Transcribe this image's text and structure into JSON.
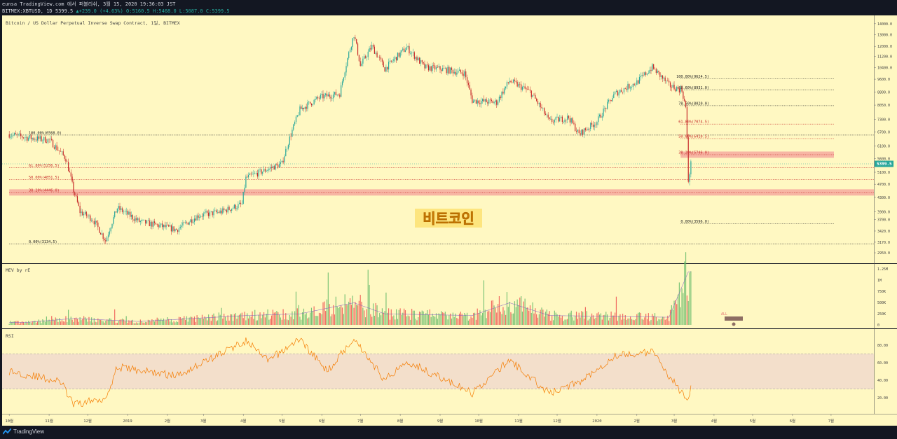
{
  "header": {
    "line1": "eunsa TradingView.com 에서 퍼블리쉬, 3월 15, 2020 19:36:03 JST",
    "symbol": "BITMEX:XBTUSD, 1D",
    "price": "5399.5",
    "arrow": "▲",
    "change": "+239.0 (+4.63%)",
    "ohlc": "O:5160.5 H:5468.0 L:5087.0 C:5399.5"
  },
  "chart_data": {
    "type": "candlestick",
    "title": "Bitcoin / US Dollar Perpetual Inverse Swap Contract, 1일, BITMEX",
    "last_price": 5399.5,
    "last_price_label": "5399.5",
    "y_ticks": [
      "14000.0",
      "13000.0",
      "12000.0",
      "11200.0",
      "10400.0",
      "9600.0",
      "8800.0",
      "8050.0",
      "7300.0",
      "6700.0",
      "6100.0",
      "5600.0",
      "5100.0",
      "4700.0",
      "4300.0",
      "3900.0",
      "3700.0",
      "3420.0",
      "3170.0",
      "2950.0"
    ],
    "x_ticks": [
      "10월",
      "11월",
      "12월",
      "2019",
      "2월",
      "3월",
      "4월",
      "5월",
      "6월",
      "7월",
      "8월",
      "9월",
      "10월",
      "11월",
      "12월",
      "2020",
      "2월",
      "3월",
      "4월",
      "5월",
      "6월",
      "7월"
    ],
    "price_path": [
      {
        "date": "2018-10-01",
        "close": 6600
      },
      {
        "date": "2018-10-15",
        "close": 6450
      },
      {
        "date": "2018-11-01",
        "close": 6350
      },
      {
        "date": "2018-11-14",
        "close": 5600
      },
      {
        "date": "2018-11-20",
        "close": 4500
      },
      {
        "date": "2018-11-25",
        "close": 3900
      },
      {
        "date": "2018-12-05",
        "close": 3700
      },
      {
        "date": "2018-12-15",
        "close": 3200
      },
      {
        "date": "2018-12-24",
        "close": 4000
      },
      {
        "date": "2019-01-10",
        "close": 3650
      },
      {
        "date": "2019-01-25",
        "close": 3550
      },
      {
        "date": "2019-02-08",
        "close": 3450
      },
      {
        "date": "2019-02-25",
        "close": 3800
      },
      {
        "date": "2019-03-15",
        "close": 3900
      },
      {
        "date": "2019-03-31",
        "close": 4100
      },
      {
        "date": "2019-04-03",
        "close": 4900
      },
      {
        "date": "2019-04-25",
        "close": 5300
      },
      {
        "date": "2019-05-01",
        "close": 5400
      },
      {
        "date": "2019-05-15",
        "close": 7800
      },
      {
        "date": "2019-05-31",
        "close": 8500
      },
      {
        "date": "2019-06-15",
        "close": 8700
      },
      {
        "date": "2019-06-26",
        "close": 13000
      },
      {
        "date": "2019-07-01",
        "close": 10500
      },
      {
        "date": "2019-07-10",
        "close": 12000
      },
      {
        "date": "2019-07-20",
        "close": 10300
      },
      {
        "date": "2019-08-06",
        "close": 11900
      },
      {
        "date": "2019-08-20",
        "close": 10400
      },
      {
        "date": "2019-09-01",
        "close": 10300
      },
      {
        "date": "2019-09-20",
        "close": 10000
      },
      {
        "date": "2019-09-26",
        "close": 8300
      },
      {
        "date": "2019-10-15",
        "close": 8200
      },
      {
        "date": "2019-10-25",
        "close": 9500
      },
      {
        "date": "2019-11-10",
        "close": 8800
      },
      {
        "date": "2019-11-25",
        "close": 7200
      },
      {
        "date": "2019-12-10",
        "close": 7400
      },
      {
        "date": "2019-12-18",
        "close": 6600
      },
      {
        "date": "2020-01-01",
        "close": 7200
      },
      {
        "date": "2020-01-15",
        "close": 8700
      },
      {
        "date": "2020-02-01",
        "close": 9400
      },
      {
        "date": "2020-02-13",
        "close": 10400
      },
      {
        "date": "2020-02-26",
        "close": 9200
      },
      {
        "date": "2020-03-07",
        "close": 8900
      },
      {
        "date": "2020-03-10",
        "close": 7900
      },
      {
        "date": "2020-03-12",
        "close": 4800
      },
      {
        "date": "2020-03-13",
        "close": 5100
      },
      {
        "date": "2020-03-14",
        "close": 5400
      }
    ],
    "fib_left": [
      {
        "label": "100.00%(6568.0)",
        "value": 6568.0
      },
      {
        "label": "61.80%(5256.5)",
        "value": 5256.5
      },
      {
        "label": "50.00%(4851.5)",
        "value": 4851.5
      },
      {
        "label": "38.20%(4446.0)",
        "value": 4446.0
      },
      {
        "label": "0.00%(3134.5)",
        "value": 3134.5
      }
    ],
    "fib_right": [
      {
        "label": "100.00%(9624.5)",
        "value": 9624.5
      },
      {
        "label": "88.60%(8931.0)",
        "value": 8931.0
      },
      {
        "label": "78.60%(8020.0)",
        "value": 8020.0
      },
      {
        "label": "61.80%(7074.5)",
        "value": 7074.5
      },
      {
        "label": "50.00%(6410.5)",
        "value": 6410.5
      },
      {
        "label": "38.20%(5746.0)",
        "value": 5746.0
      },
      {
        "label": "0.00%(3596.0)",
        "value": 3596.0
      }
    ],
    "annotation": "비트코인",
    "volume_pane": {
      "label": "MEV by rE",
      "y_ticks": [
        "1.25M",
        "1M",
        "750K",
        "500K",
        "250K",
        "0"
      ],
      "marker_label": "ALL",
      "volume_path": [
        {
          "date": "2018-10-15",
          "value": 60000
        },
        {
          "date": "2018-11-20",
          "value": 150000
        },
        {
          "date": "2019-01-10",
          "value": 80000
        },
        {
          "date": "2019-04-03",
          "value": 220000
        },
        {
          "date": "2019-05-15",
          "value": 260000
        },
        {
          "date": "2019-06-26",
          "value": 520000
        },
        {
          "date": "2019-07-20",
          "value": 260000
        },
        {
          "date": "2019-09-26",
          "value": 220000
        },
        {
          "date": "2019-10-25",
          "value": 520000
        },
        {
          "date": "2019-11-25",
          "value": 220000
        },
        {
          "date": "2020-01-15",
          "value": 200000
        },
        {
          "date": "2020-02-26",
          "value": 180000
        },
        {
          "date": "2020-03-12",
          "value": 1250000
        }
      ]
    },
    "rsi_pane": {
      "label": "RSI",
      "y_ticks": [
        "80.00",
        "60.00",
        "40.00",
        "20.00"
      ],
      "band": [
        30,
        70
      ],
      "rsi_path": [
        {
          "date": "2018-10-01",
          "value": 50
        },
        {
          "date": "2018-10-20",
          "value": 45
        },
        {
          "date": "2018-11-10",
          "value": 38
        },
        {
          "date": "2018-11-20",
          "value": 12
        },
        {
          "date": "2018-12-15",
          "value": 20
        },
        {
          "date": "2018-12-24",
          "value": 55
        },
        {
          "date": "2019-02-08",
          "value": 45
        },
        {
          "date": "2019-04-03",
          "value": 85
        },
        {
          "date": "2019-04-20",
          "value": 62
        },
        {
          "date": "2019-05-15",
          "value": 87
        },
        {
          "date": "2019-06-05",
          "value": 50
        },
        {
          "date": "2019-06-26",
          "value": 88
        },
        {
          "date": "2019-07-20",
          "value": 40
        },
        {
          "date": "2019-08-06",
          "value": 62
        },
        {
          "date": "2019-09-26",
          "value": 25
        },
        {
          "date": "2019-10-25",
          "value": 63
        },
        {
          "date": "2019-11-25",
          "value": 25
        },
        {
          "date": "2019-12-18",
          "value": 38
        },
        {
          "date": "2020-01-15",
          "value": 68
        },
        {
          "date": "2020-02-13",
          "value": 72
        },
        {
          "date": "2020-03-12",
          "value": 15
        },
        {
          "date": "2020-03-14",
          "value": 30
        }
      ]
    }
  },
  "footer": {
    "brand": "TradingView"
  },
  "colors": {
    "background": "#fff8c2",
    "up": "#26a69a",
    "down": "#c62828",
    "fib_box": "#f4a09a",
    "rsi_line": "#f57c00",
    "rsi_band": "#f3dfcb",
    "dark": "#131722"
  }
}
